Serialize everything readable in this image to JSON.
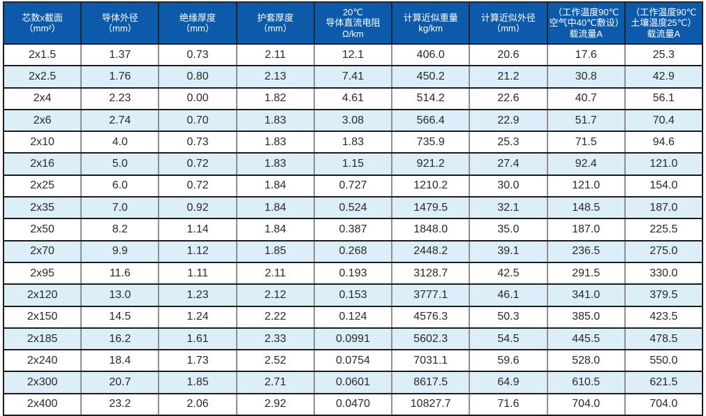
{
  "table": {
    "title": "cable-specification-table",
    "headers": [
      {
        "lines": [
          "芯数x截面",
          "（mm²）"
        ]
      },
      {
        "lines": [
          "导体外径",
          "（mm）"
        ]
      },
      {
        "lines": [
          "绝缘厚度",
          "（mm）"
        ]
      },
      {
        "lines": [
          "护套厚度",
          "（mm）"
        ]
      },
      {
        "lines": [
          "20℃",
          "导体直流电阻",
          "Ω/km"
        ]
      },
      {
        "lines": [
          "计算近似重量",
          "kg/km"
        ]
      },
      {
        "lines": [
          "计算近似外径",
          "（mm）"
        ]
      },
      {
        "lines": [
          "（工作温度90℃",
          "空气中40℃敷设）",
          "载流量A"
        ]
      },
      {
        "lines": [
          "（工作温度90℃",
          "土壤温度25℃）",
          "载流量A"
        ]
      }
    ],
    "rows": [
      [
        "2x1.5",
        "1.37",
        "0.73",
        "2.11",
        "12.1",
        "406.0",
        "20.6",
        "17.6",
        "25.3"
      ],
      [
        "2x2.5",
        "1.76",
        "0.80",
        "2.13",
        "7.41",
        "450.2",
        "21.2",
        "30.8",
        "42.9"
      ],
      [
        "2x4",
        "2.23",
        "0.00",
        "1.82",
        "4.61",
        "514.2",
        "22.6",
        "40.7",
        "56.1"
      ],
      [
        "2x6",
        "2.74",
        "0.70",
        "1.83",
        "3.08",
        "566.4",
        "22.9",
        "51.7",
        "70.4"
      ],
      [
        "2x10",
        "4.0",
        "0.73",
        "1.83",
        "1.83",
        "735.9",
        "25.3",
        "71.5",
        "94.6"
      ],
      [
        "2x16",
        "5.0",
        "0.72",
        "1.83",
        "1.15",
        "921.2",
        "27.4",
        "92.4",
        "121.0"
      ],
      [
        "2x25",
        "6.0",
        "0.72",
        "1.84",
        "0.727",
        "1210.2",
        "30.0",
        "121.0",
        "154.0"
      ],
      [
        "2x35",
        "7.0",
        "0.92",
        "1.84",
        "0.524",
        "1479.5",
        "32.1",
        "148.5",
        "187.0"
      ],
      [
        "2x50",
        "8.2",
        "1.14",
        "1.84",
        "0.387",
        "1848.0",
        "35.0",
        "187.0",
        "225.5"
      ],
      [
        "2x70",
        "9.9",
        "1.12",
        "1.85",
        "0.268",
        "2448.2",
        "39.1",
        "236.5",
        "275.0"
      ],
      [
        "2x95",
        "11.6",
        "1.11",
        "2.11",
        "0.193",
        "3128.7",
        "42.5",
        "291.5",
        "330.0"
      ],
      [
        "2x120",
        "13.0",
        "1.23",
        "2.12",
        "0.153",
        "3777.1",
        "46.1",
        "341.0",
        "379.5"
      ],
      [
        "2x150",
        "14.5",
        "1.24",
        "2.22",
        "0.124",
        "4576.3",
        "50.3",
        "385.0",
        "423.5"
      ],
      [
        "2x185",
        "16.2",
        "1.61",
        "2.33",
        "0.0991",
        "5602.3",
        "54.5",
        "445.5",
        "478.5"
      ],
      [
        "2x240",
        "18.4",
        "1.73",
        "2.52",
        "0.0754",
        "7031.1",
        "59.6",
        "528.0",
        "550.0"
      ],
      [
        "2x300",
        "20.7",
        "1.85",
        "2.71",
        "0.0601",
        "8617.5",
        "64.9",
        "610.5",
        "621.5"
      ],
      [
        "2x400",
        "23.2",
        "2.06",
        "2.92",
        "0.0470",
        "10827.7",
        "71.6",
        "704.0",
        "704.0"
      ]
    ]
  },
  "colors": {
    "header_bg": "#0d5aab",
    "header_text": "#ffffff",
    "header_separator": "#1d242b",
    "row_bg": "#ffffff",
    "row_alt_bg": "#dceef8",
    "horizontal_line": "#1b1b1b",
    "vertical_line": "#8f8f8f",
    "body_text": "#282828"
  }
}
